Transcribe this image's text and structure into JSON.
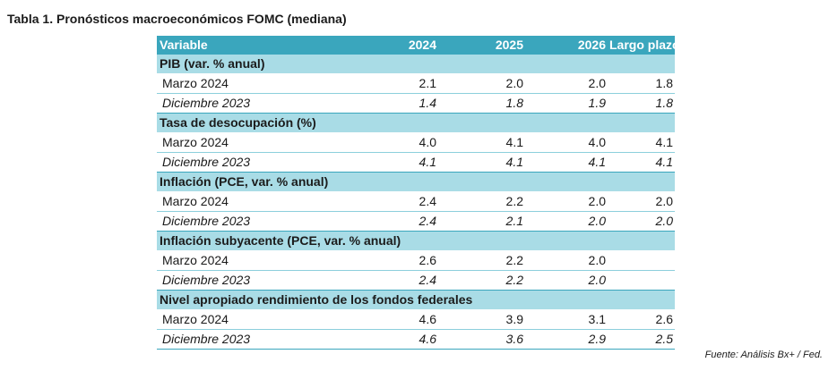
{
  "title": "Tabla 1. Pronósticos macroeconómicos FOMC (mediana)",
  "header": {
    "variable": "Variable",
    "c2024": "2024",
    "c2025": "2025",
    "c2026": "2026",
    "long_run": "Largo plazo"
  },
  "sections": [
    {
      "name": "PIB (var. % anual)",
      "rows": [
        {
          "label": "Marzo 2024",
          "v2024": "2.1",
          "v2025": "2.0",
          "v2026": "2.0",
          "long": "1.8"
        },
        {
          "label": "Diciembre 2023",
          "v2024": "1.4",
          "v2025": "1.8",
          "v2026": "1.9",
          "long": "1.8"
        }
      ]
    },
    {
      "name": "Tasa de desocupación (%)",
      "rows": [
        {
          "label": "Marzo 2024",
          "v2024": "4.0",
          "v2025": "4.1",
          "v2026": "4.0",
          "long": "4.1"
        },
        {
          "label": "Diciembre 2023",
          "v2024": "4.1",
          "v2025": "4.1",
          "v2026": "4.1",
          "long": "4.1"
        }
      ]
    },
    {
      "name": "Inflación (PCE, var. % anual)",
      "rows": [
        {
          "label": "Marzo 2024",
          "v2024": "2.4",
          "v2025": "2.2",
          "v2026": "2.0",
          "long": "2.0"
        },
        {
          "label": "Diciembre 2023",
          "v2024": "2.4",
          "v2025": "2.1",
          "v2026": "2.0",
          "long": "2.0"
        }
      ]
    },
    {
      "name": "Inflación subyacente (PCE, var. % anual)",
      "rows": [
        {
          "label": "Marzo 2024",
          "v2024": "2.6",
          "v2025": "2.2",
          "v2026": "2.0",
          "long": ""
        },
        {
          "label": "Diciembre 2023",
          "v2024": "2.4",
          "v2025": "2.2",
          "v2026": "2.0",
          "long": ""
        }
      ]
    },
    {
      "name": "Nivel apropiado rendimiento de los fondos federales",
      "rows": [
        {
          "label": "Marzo 2024",
          "v2024": "4.6",
          "v2025": "3.9",
          "v2026": "3.1",
          "long": "2.6"
        },
        {
          "label": "Diciembre 2023",
          "v2024": "4.6",
          "v2025": "3.6",
          "v2026": "2.9",
          "long": "2.5"
        }
      ]
    }
  ],
  "source": "Fuente: Análisis Bx+ /  Fed.",
  "colors": {
    "header_bg": "#3aa6bd",
    "section_bg": "#a9dce6"
  }
}
